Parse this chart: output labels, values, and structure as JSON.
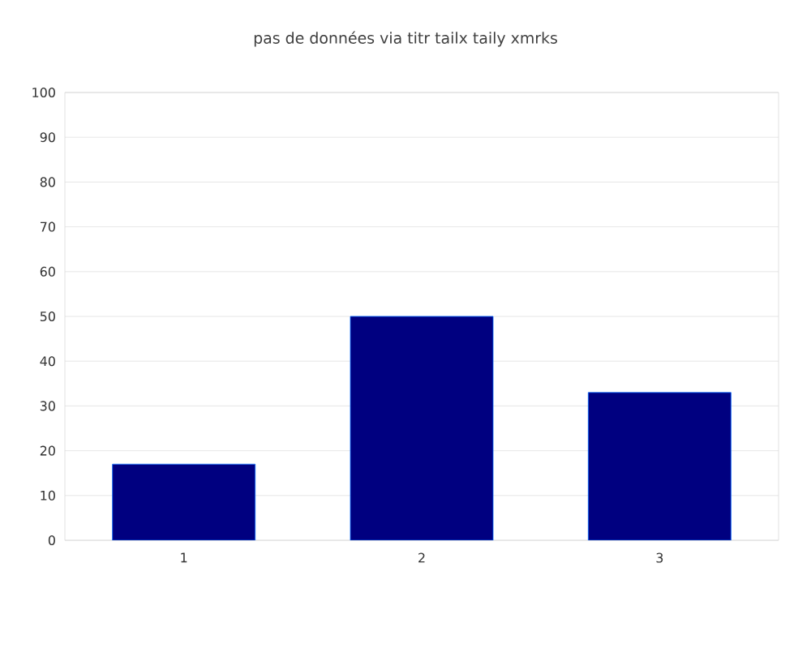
{
  "chart_data": {
    "type": "bar",
    "title": "pas de données via titr tailx taily xmrks",
    "categories": [
      "1",
      "2",
      "3"
    ],
    "values": [
      17,
      50,
      33
    ],
    "color": "#000080",
    "ylim": [
      0,
      100
    ],
    "yticks": [
      0,
      10,
      20,
      30,
      40,
      50,
      60,
      70,
      80,
      90,
      100
    ],
    "grid": "y"
  }
}
